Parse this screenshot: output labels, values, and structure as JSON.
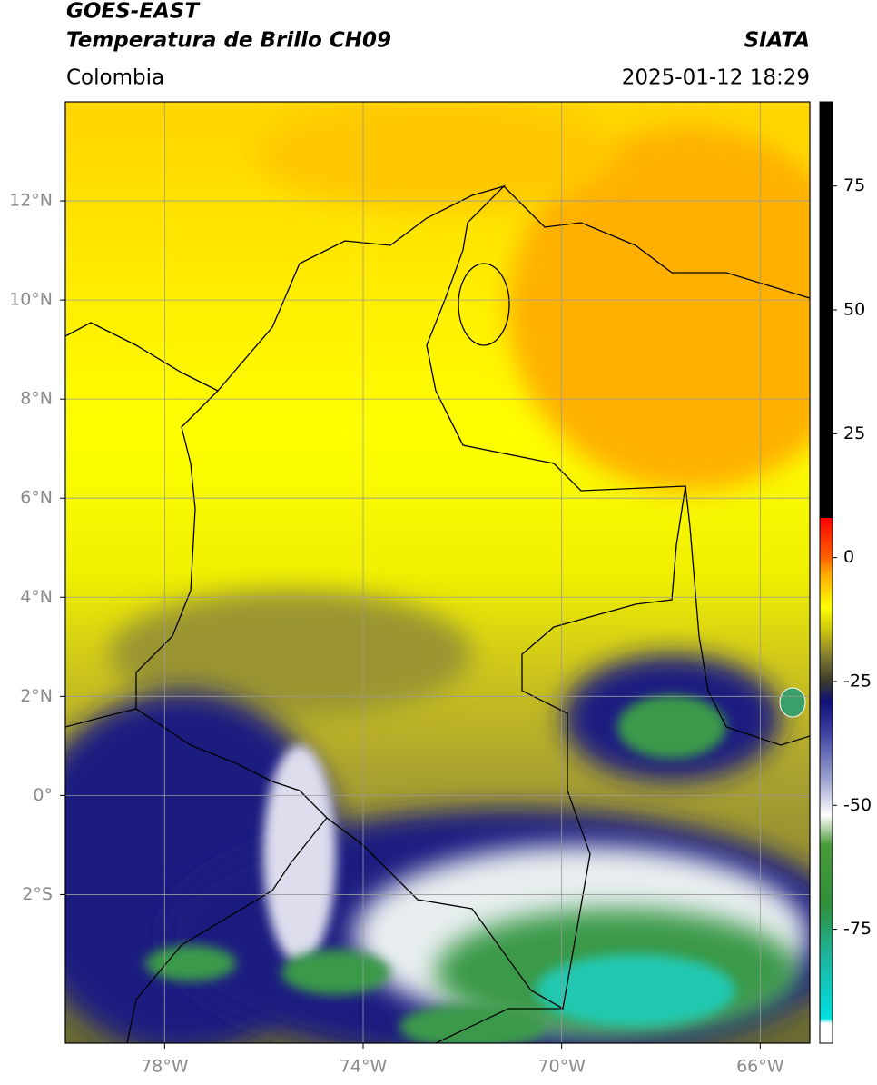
{
  "header": {
    "title": "GOES-EAST",
    "subtitle": "Temperatura de Brillo CH09",
    "credit": "SIATA",
    "region": "Colombia",
    "timestamp": "2025-01-12 18:29"
  },
  "map": {
    "xlim": [
      -80,
      -65
    ],
    "ylim": [
      -5,
      14
    ],
    "xticks": [
      {
        "value": -78,
        "label": "78°W"
      },
      {
        "value": -74,
        "label": "74°W"
      },
      {
        "value": -70,
        "label": "70°W"
      },
      {
        "value": -66,
        "label": "66°W"
      }
    ],
    "yticks": [
      {
        "value": 12,
        "label": "12°N"
      },
      {
        "value": 10,
        "label": "10°N"
      },
      {
        "value": 8,
        "label": "8°N"
      },
      {
        "value": 6,
        "label": "6°N"
      },
      {
        "value": 4,
        "label": "4°N"
      },
      {
        "value": 2,
        "label": "2°N"
      },
      {
        "value": 0,
        "label": "0°"
      },
      {
        "value": -2,
        "label": "2°S"
      }
    ],
    "grid": true,
    "grid_color": "#9a9a9a"
  },
  "colorbar": {
    "lim": [
      -98,
      92
    ],
    "ticks": [
      75,
      50,
      25,
      0,
      -25,
      -50,
      -75
    ],
    "colorscale": [
      [
        -98,
        "#ffffff"
      ],
      [
        -94,
        "#ffffff"
      ],
      [
        -93,
        "#00e0e0"
      ],
      [
        -80,
        "#1fb39a"
      ],
      [
        -70,
        "#2f8f3a"
      ],
      [
        -58,
        "#4a9a3a"
      ],
      [
        -52,
        "#ffffff"
      ],
      [
        -45,
        "#9fa5d0"
      ],
      [
        -35,
        "#3a3fa0"
      ],
      [
        -29,
        "#10107a"
      ],
      [
        -25,
        "#3a3a2a"
      ],
      [
        -20,
        "#807a30"
      ],
      [
        -15,
        "#c8c010"
      ],
      [
        -10,
        "#ffff00"
      ],
      [
        -3,
        "#ffa500"
      ],
      [
        0,
        "#ff6000"
      ],
      [
        8,
        "#ff0000"
      ],
      [
        8,
        "#000000"
      ],
      [
        92,
        "#000000"
      ]
    ]
  }
}
